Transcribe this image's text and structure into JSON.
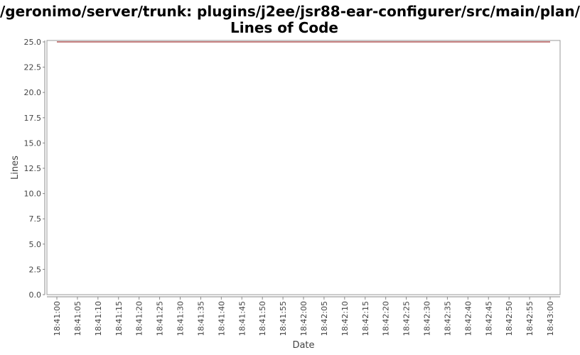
{
  "title_line1": "/geronimo/server/trunk: plugins/j2ee/jsr88-ear-configurer/src/main/plan/",
  "title_line2": "Lines of Code",
  "chart_data": {
    "type": "line",
    "title": "/geronimo/server/trunk: plugins/j2ee/jsr88-ear-configurer/src/main/plan/ Lines of Code",
    "xlabel": "Date",
    "ylabel": "Lines",
    "x_ticks": [
      "18:41:00",
      "18:41:05",
      "18:41:10",
      "18:41:15",
      "18:41:20",
      "18:41:25",
      "18:41:30",
      "18:41:35",
      "18:41:40",
      "18:41:45",
      "18:41:50",
      "18:41:55",
      "18:42:00",
      "18:42:05",
      "18:42:10",
      "18:42:15",
      "18:42:20",
      "18:42:25",
      "18:42:30",
      "18:42:35",
      "18:42:40",
      "18:42:45",
      "18:42:50",
      "18:42:55",
      "18:43:00"
    ],
    "y_ticks": [
      "0.0",
      "2.5",
      "5.0",
      "7.5",
      "10.0",
      "12.5",
      "15.0",
      "17.5",
      "20.0",
      "22.5",
      "25.0"
    ],
    "ylim": [
      0,
      25
    ],
    "grid": false,
    "series": [
      {
        "color": "#8b0000",
        "x": [
          "18:41:00",
          "18:43:00"
        ],
        "y": [
          25,
          25
        ]
      }
    ]
  }
}
